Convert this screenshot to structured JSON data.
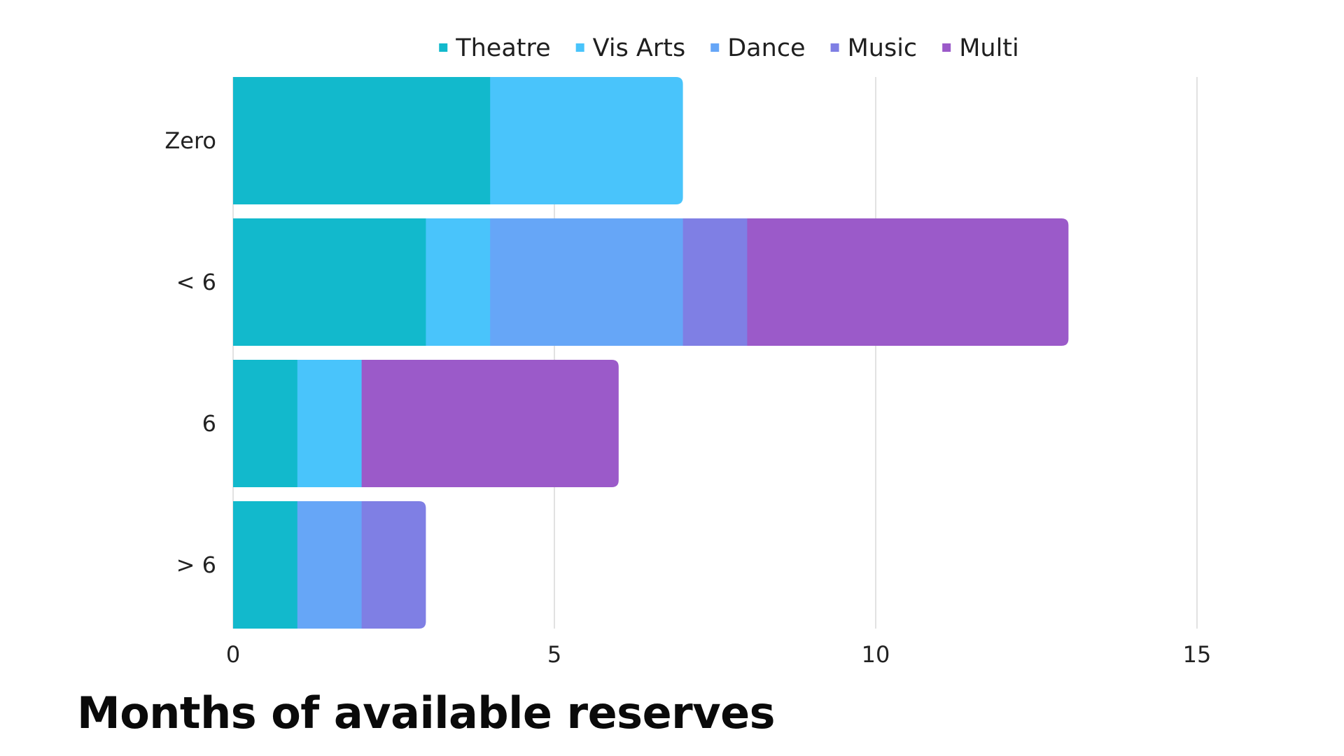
{
  "chart_data": {
    "type": "bar",
    "orientation": "horizontal",
    "stacked": true,
    "title": "Months of available reserves",
    "xlabel": "",
    "ylabel": "",
    "categories": [
      "Zero",
      "< 6",
      "6",
      "> 6"
    ],
    "series": [
      {
        "name": "Theatre",
        "color": "#12b9cc",
        "values": [
          4,
          3,
          1,
          1
        ]
      },
      {
        "name": "Vis Arts",
        "color": "#49c4fb",
        "values": [
          3,
          1,
          1,
          0
        ]
      },
      {
        "name": "Dance",
        "color": "#66a6f7",
        "values": [
          0,
          3,
          0,
          1
        ]
      },
      {
        "name": "Music",
        "color": "#7f7fe4",
        "values": [
          0,
          1,
          0,
          1
        ]
      },
      {
        "name": "Multi",
        "color": "#9b5ac9",
        "values": [
          0,
          5,
          4,
          0
        ]
      }
    ],
    "xlim": [
      0,
      15
    ],
    "xticks": [
      0,
      5,
      10,
      15
    ],
    "grid": true,
    "legend_position": "top-center"
  }
}
